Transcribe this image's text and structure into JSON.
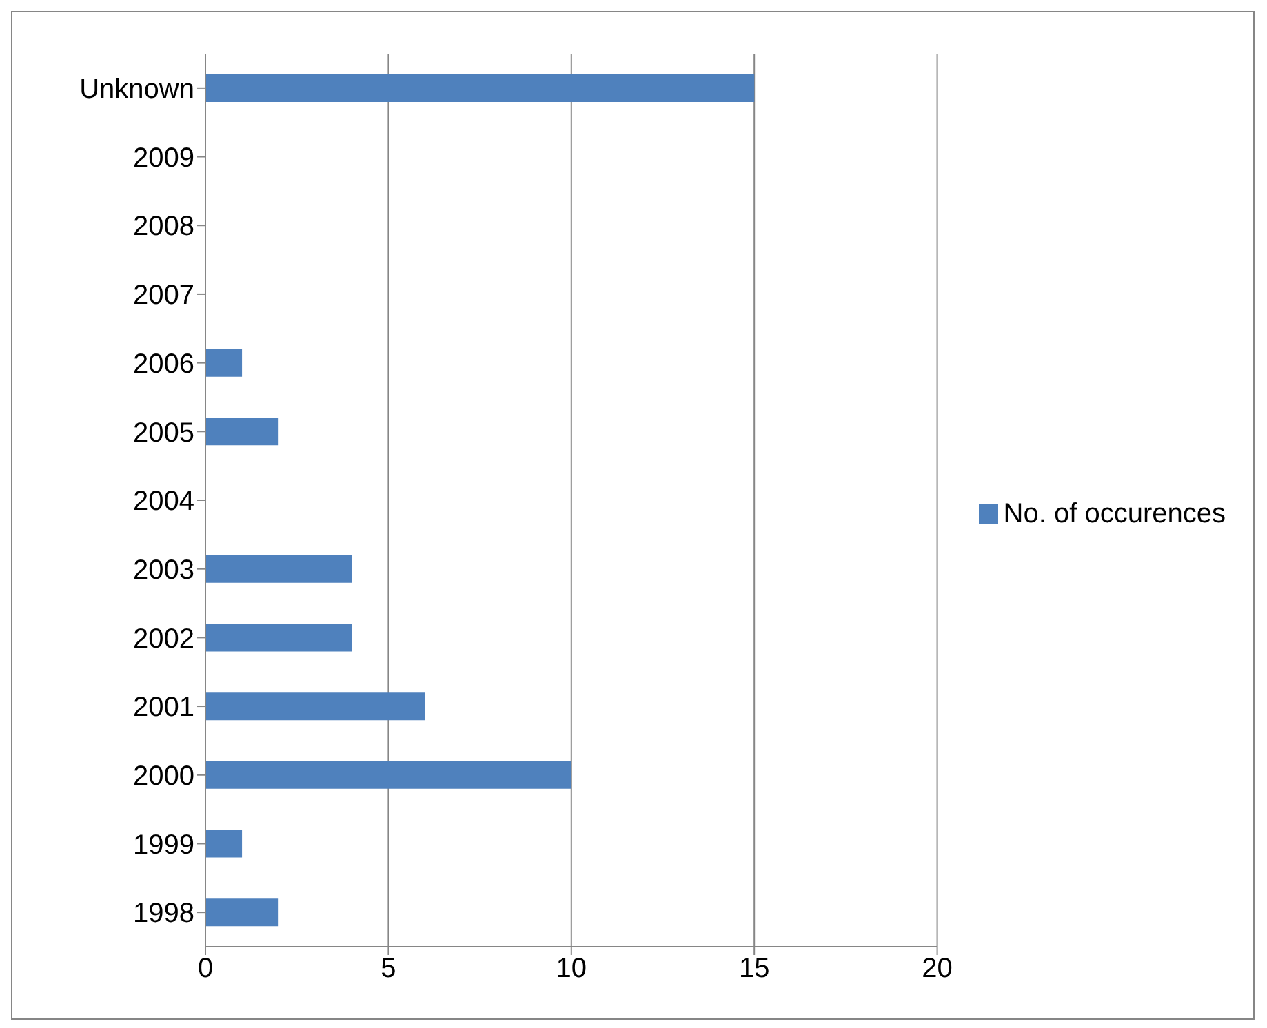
{
  "chart_data": {
    "type": "bar",
    "orientation": "horizontal",
    "categories": [
      "Unknown",
      "2009",
      "2008",
      "2007",
      "2006",
      "2005",
      "2004",
      "2003",
      "2002",
      "2001",
      "2000",
      "1999",
      "1998"
    ],
    "series": [
      {
        "name": "No. of occurences",
        "color": "#4f81bd",
        "values": [
          15,
          0,
          0,
          0,
          1,
          2,
          0,
          4,
          4,
          6,
          10,
          1,
          2
        ]
      }
    ],
    "xlim": [
      0,
      20
    ],
    "xticks": [
      0,
      5,
      10,
      15,
      20
    ],
    "grid": "x",
    "legend": "right"
  }
}
